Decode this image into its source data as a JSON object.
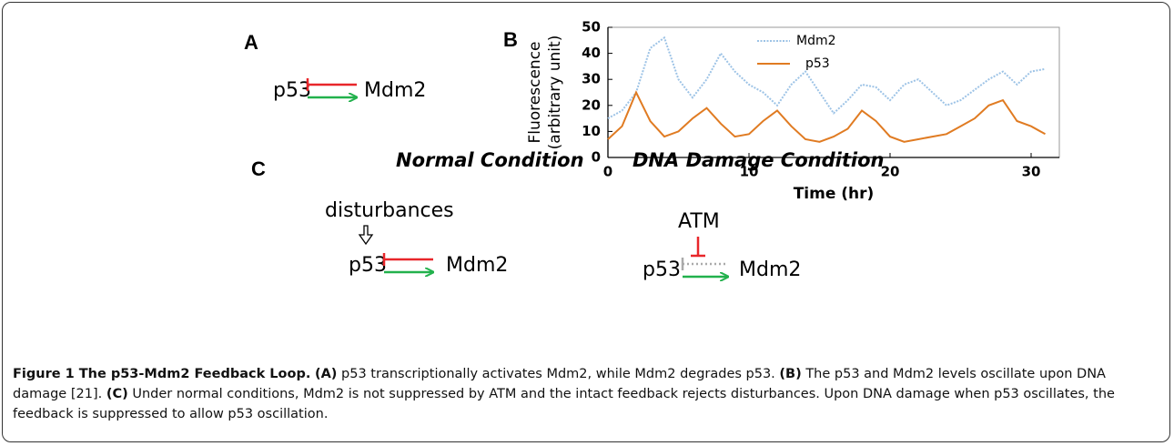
{
  "panels": {
    "a": {
      "label": "A",
      "left": "p53",
      "right": "Mdm2"
    },
    "c": {
      "label": "C",
      "normal": {
        "title": "Normal Condition",
        "input": "disturbances",
        "left": "p53",
        "right": "Mdm2"
      },
      "damage": {
        "title": "DNA Damage Condition",
        "input": "ATM",
        "left": "p53",
        "right": "Mdm2"
      }
    }
  },
  "chart_data": {
    "panel_label": "B",
    "type": "line",
    "xlabel": "Time (hr)",
    "ylabel": [
      "Fluorescence",
      "(arbitrary unit)"
    ],
    "x": [
      0,
      1,
      2,
      3,
      4,
      5,
      6,
      7,
      8,
      9,
      10,
      11,
      12,
      13,
      14,
      15,
      16,
      17,
      18,
      19,
      20,
      21,
      22,
      23,
      24,
      25,
      26,
      27,
      28,
      29,
      30,
      31
    ],
    "series": [
      {
        "name": "Mdm2",
        "color": "#9dc3e6",
        "dash": "dotted",
        "values": [
          15,
          18,
          25,
          42,
          46,
          30,
          23,
          30,
          40,
          33,
          28,
          25,
          20,
          28,
          33,
          25,
          17,
          22,
          28,
          27,
          22,
          28,
          30,
          25,
          20,
          22,
          26,
          30,
          33,
          28,
          33,
          34
        ]
      },
      {
        "name": "p53",
        "color": "#e07b22",
        "values": [
          7,
          12,
          25,
          14,
          8,
          10,
          15,
          19,
          13,
          8,
          9,
          14,
          18,
          12,
          7,
          6,
          8,
          11,
          18,
          14,
          8,
          6,
          7,
          8,
          9,
          12,
          15,
          20,
          22,
          14,
          12,
          9
        ]
      }
    ],
    "xlim": [
      0,
      32
    ],
    "ylim": [
      0,
      50
    ],
    "xticks": [
      0,
      10,
      20,
      30
    ],
    "yticks": [
      0,
      10,
      20,
      30,
      40,
      50
    ]
  },
  "caption": {
    "figure": "Figure 1 The p53-Mdm2 Feedback Loop.",
    "a_label": "(A)",
    "a_text": "p53 transcriptionally activates Mdm2, while Mdm2 degrades p53.",
    "b_label": "(B)",
    "b_text": "The p53 and Mdm2 levels oscillate upon DNA damage [21].",
    "c_label": "(C)",
    "c_text": "Under normal conditions, Mdm2 is not suppressed by ATM and the intact feedback rejects disturbances. Upon DNA damage when p53 oscillates, the feedback is suppressed to allow p53 oscillation."
  }
}
